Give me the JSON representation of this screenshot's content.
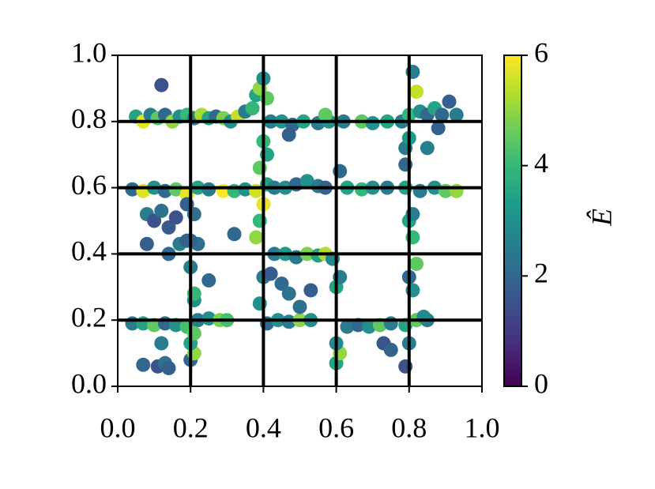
{
  "chart_data": {
    "type": "scatter",
    "x": [
      0.05,
      0.07,
      0.09,
      0.11,
      0.13,
      0.15,
      0.17,
      0.19,
      0.21,
      0.23,
      0.25,
      0.27,
      0.29,
      0.31,
      0.33,
      0.35,
      0.37,
      0.38,
      0.39,
      0.4,
      0.41,
      0.42,
      0.45,
      0.48,
      0.51,
      0.55,
      0.58,
      0.62,
      0.67,
      0.7,
      0.74,
      0.78,
      0.8,
      0.81,
      0.82,
      0.83,
      0.85,
      0.87,
      0.89,
      0.91,
      0.93,
      0.12,
      0.47,
      0.57,
      0.04,
      0.07,
      0.1,
      0.13,
      0.16,
      0.19,
      0.22,
      0.25,
      0.29,
      0.32,
      0.35,
      0.38,
      0.41,
      0.43,
      0.46,
      0.49,
      0.52,
      0.55,
      0.57,
      0.61,
      0.63,
      0.67,
      0.7,
      0.74,
      0.79,
      0.83,
      0.87,
      0.9,
      0.93,
      0.79,
      0.14,
      0.17,
      0.19,
      0.22,
      0.43,
      0.46,
      0.49,
      0.52,
      0.55,
      0.57,
      0.59,
      0.04,
      0.07,
      0.1,
      0.13,
      0.16,
      0.19,
      0.22,
      0.25,
      0.28,
      0.3,
      0.41,
      0.44,
      0.47,
      0.5,
      0.53,
      0.63,
      0.66,
      0.69,
      0.72,
      0.75,
      0.79,
      0.82,
      0.85,
      0.2,
      0.21,
      0.2,
      0.21,
      0.21,
      0.21,
      0.2,
      0.2,
      0.21,
      0.19,
      0.39,
      0.4,
      0.38,
      0.39,
      0.4,
      0.39,
      0.41,
      0.4,
      0.6,
      0.61,
      0.6,
      0.6,
      0.61,
      0.79,
      0.8,
      0.81,
      0.8,
      0.82,
      0.81,
      0.8,
      0.81,
      0.79,
      0.8,
      0.08,
      0.1,
      0.12,
      0.14,
      0.16,
      0.08,
      0.07,
      0.11,
      0.13,
      0.14,
      0.12,
      0.32,
      0.25,
      0.42,
      0.45,
      0.47,
      0.5,
      0.53,
      0.73,
      0.75,
      0.84,
      0.85,
      0.88
    ],
    "values": [
      0.815,
      0.8,
      0.82,
      0.81,
      0.82,
      0.8,
      0.815,
      0.82,
      0.81,
      0.82,
      0.81,
      0.815,
      0.81,
      0.8,
      0.815,
      0.83,
      0.84,
      0.88,
      0.9,
      0.93,
      0.87,
      0.8,
      0.8,
      0.79,
      0.8,
      0.795,
      0.8,
      0.8,
      0.8,
      0.795,
      0.8,
      0.8,
      0.82,
      0.95,
      0.89,
      0.83,
      0.82,
      0.84,
      0.82,
      0.86,
      0.82,
      0.91,
      0.76,
      0.82,
      0.595,
      0.59,
      0.6,
      0.59,
      0.595,
      0.58,
      0.6,
      0.595,
      0.59,
      0.59,
      0.595,
      0.59,
      0.61,
      0.6,
      0.6,
      0.61,
      0.62,
      0.605,
      0.6,
      0.65,
      0.6,
      0.595,
      0.6,
      0.6,
      0.6,
      0.59,
      0.6,
      0.59,
      0.59,
      0.67,
      0.4,
      0.43,
      0.44,
      0.43,
      0.4,
      0.4,
      0.39,
      0.4,
      0.395,
      0.4,
      0.385,
      0.19,
      0.19,
      0.185,
      0.19,
      0.185,
      0.18,
      0.2,
      0.205,
      0.2,
      0.2,
      0.19,
      0.2,
      0.195,
      0.2,
      0.2,
      0.18,
      0.185,
      0.18,
      0.185,
      0.19,
      0.185,
      0.2,
      0.2,
      0.08,
      0.1,
      0.13,
      0.16,
      0.26,
      0.28,
      0.36,
      0.44,
      0.52,
      0.55,
      0.25,
      0.33,
      0.45,
      0.5,
      0.55,
      0.66,
      0.7,
      0.74,
      0.07,
      0.1,
      0.13,
      0.3,
      0.33,
      0.06,
      0.13,
      0.29,
      0.33,
      0.37,
      0.45,
      0.5,
      0.52,
      0.72,
      0.75,
      0.52,
      0.5,
      0.53,
      0.48,
      0.51,
      0.43,
      0.065,
      0.06,
      0.07,
      0.055,
      0.13,
      0.46,
      0.32,
      0.34,
      0.31,
      0.28,
      0.24,
      0.29,
      0.13,
      0.11,
      0.21,
      0.72,
      0.78
    ],
    "c": [
      3.5,
      5.8,
      2.5,
      4.5,
      2,
      5,
      3,
      4,
      2.5,
      5.2,
      3.5,
      2,
      4.8,
      3,
      5.5,
      2.5,
      4,
      3.5,
      5,
      3,
      4.5,
      2.5,
      3,
      2,
      3.5,
      2.5,
      3,
      2.5,
      4.5,
      3,
      3.5,
      2.5,
      4,
      2.5,
      5.5,
      3,
      2,
      3.5,
      2,
      1.8,
      2.5,
      1.5,
      1.8,
      4.5,
      2,
      5.7,
      3,
      2,
      4.5,
      5.8,
      3.5,
      2.5,
      6,
      4,
      3,
      5.6,
      3.5,
      2.5,
      3,
      2,
      3,
      2.5,
      1.8,
      2,
      3.5,
      4,
      3,
      2.5,
      3.5,
      2.5,
      3,
      4.5,
      5,
      2,
      2,
      2.5,
      1.8,
      2.2,
      2.5,
      3.2,
      2.4,
      4.8,
      3.5,
      5.3,
      2.8,
      2.5,
      3.5,
      4.5,
      2,
      3,
      4.2,
      2.5,
      3,
      4.8,
      4.2,
      2,
      3,
      2.5,
      5,
      3,
      2.5,
      2,
      3,
      4.5,
      2.5,
      3.5,
      4.5,
      2.5,
      2,
      5,
      3.5,
      4.5,
      3,
      4,
      2.5,
      1.9,
      2.2,
      1.8,
      3,
      2.5,
      5,
      4,
      5.8,
      4.5,
      3.5,
      4,
      3.5,
      5,
      2.8,
      3.5,
      2.5,
      1.5,
      2.5,
      3,
      2,
      4.5,
      4,
      3.5,
      2.5,
      2.5,
      3.2,
      2.5,
      1.5,
      2.2,
      1.7,
      1.5,
      1.8,
      2,
      1.5,
      2.2,
      1.8,
      2.5,
      2,
      2,
      1.7,
      2,
      2.3,
      2.2,
      1.8,
      1.6,
      1.9,
      2.8,
      2.6,
      1.8
    ],
    "colormap": "viridis",
    "clim": [
      0,
      6
    ],
    "cticks": [
      0,
      2,
      4,
      6
    ],
    "colorbar_label": "Ê",
    "xlim": [
      0,
      1
    ],
    "ylim": [
      0,
      1
    ],
    "xticks": [
      {
        "value": 0,
        "label": "0.0"
      },
      {
        "value": 0.2,
        "label": "0.2"
      },
      {
        "value": 0.4,
        "label": "0.4"
      },
      {
        "value": 0.6,
        "label": "0.6"
      },
      {
        "value": 0.8,
        "label": "0.8"
      },
      {
        "value": 1,
        "label": "1.0"
      }
    ],
    "yticks": [
      {
        "value": 0,
        "label": "0.0"
      },
      {
        "value": 0.2,
        "label": "0.2"
      },
      {
        "value": 0.4,
        "label": "0.4"
      },
      {
        "value": 0.6,
        "label": "0.6"
      },
      {
        "value": 0.8,
        "label": "0.8"
      },
      {
        "value": 1,
        "label": "1.0"
      }
    ],
    "vlines": [
      0.2,
      0.4,
      0.6,
      0.8
    ],
    "hlines": [
      0.2,
      0.4,
      0.6,
      0.8
    ]
  }
}
